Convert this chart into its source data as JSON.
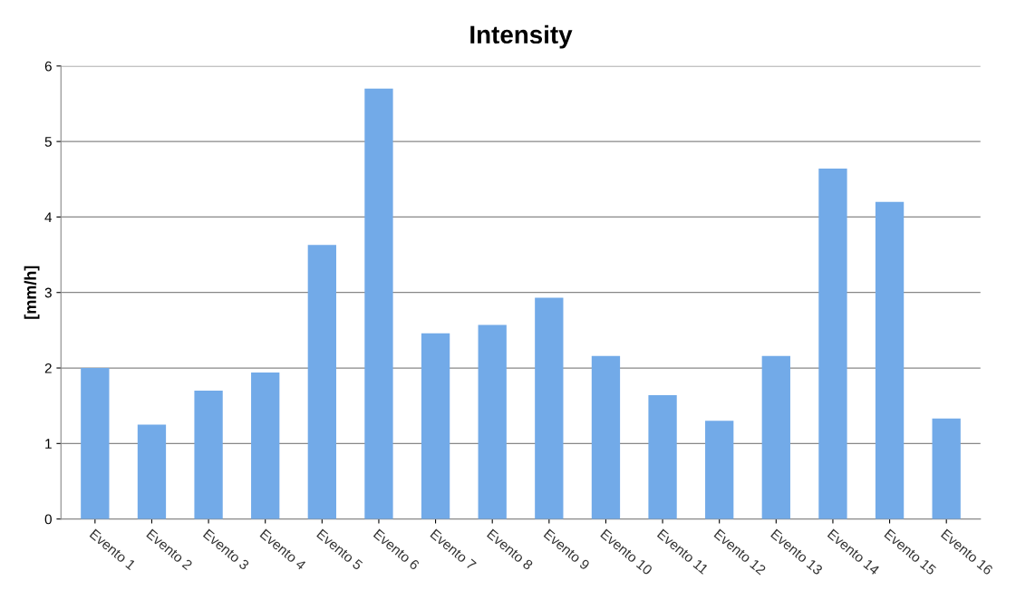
{
  "chart_data": {
    "type": "bar",
    "title": "Intensity",
    "ylabel": "[mm/h]",
    "categories": [
      "Evento 1",
      "Evento 2",
      "Evento 3",
      "Evento 4",
      "Evento 5",
      "Evento 6",
      "Evento 7",
      "Evento 8",
      "Evento 9",
      "Evento 10",
      "Evento 11",
      "Evento 12",
      "Evento 13",
      "Evento 14",
      "Evento 15",
      "Evento 16"
    ],
    "values": [
      2.0,
      1.25,
      1.7,
      1.94,
      3.63,
      5.7,
      2.46,
      2.57,
      2.93,
      2.16,
      1.64,
      1.3,
      2.16,
      4.64,
      4.2,
      1.33
    ],
    "color": "#72aae8",
    "ylim": [
      0,
      6
    ],
    "yticks": [
      0,
      1,
      2,
      3,
      4,
      5,
      6
    ],
    "grid": "y",
    "legend": false
  }
}
